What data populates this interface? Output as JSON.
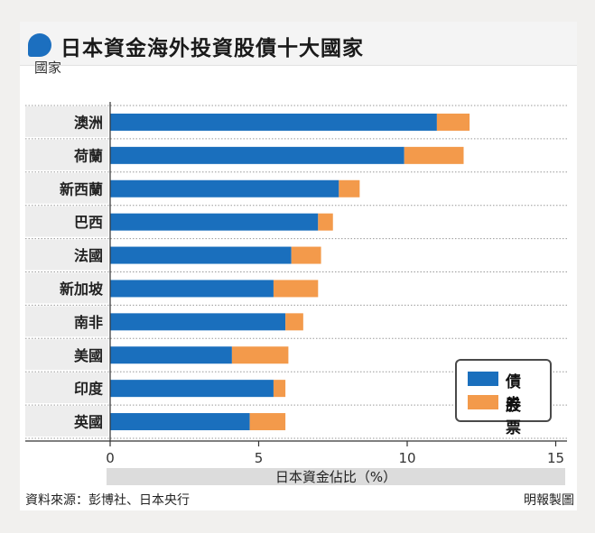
{
  "title": "日本資金海外投資股債十大國家",
  "y_axis_title": "國家",
  "source": "資料來源：彭博社、日本央行",
  "credit": "明報製圖",
  "colors": {
    "bonds": "#1a6fbd",
    "stocks": "#f39a4b",
    "title_icon": "#1c6fbf"
  },
  "chart_data": {
    "type": "bar",
    "orientation": "horizontal",
    "stacked": true,
    "categories": [
      "澳洲",
      "荷蘭",
      "新西蘭",
      "巴西",
      "法國",
      "新加坡",
      "南非",
      "美國",
      "印度",
      "英國"
    ],
    "series": [
      {
        "name": "債券",
        "values": [
          11.0,
          9.9,
          7.7,
          7.0,
          6.1,
          5.5,
          5.9,
          4.1,
          5.5,
          4.7
        ]
      },
      {
        "name": "股票",
        "values": [
          1.1,
          2.0,
          0.7,
          0.5,
          1.0,
          1.5,
          0.6,
          1.9,
          0.4,
          1.2
        ]
      }
    ],
    "xlabel": "日本資金佔比（%）",
    "ylabel": "國家",
    "xlim": [
      0,
      15
    ],
    "xticks": [
      "0",
      "5",
      "10",
      "15"
    ],
    "grid": "horizontal dotted",
    "legend_position": "bottom-right"
  }
}
